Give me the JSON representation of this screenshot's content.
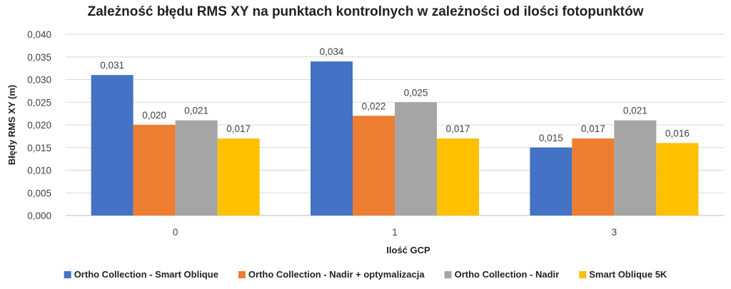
{
  "chart_data": {
    "type": "bar",
    "title": "Zależność błędu RMS XY na punktach kontrolnych w zależności od ilości fotopunktów",
    "xlabel": "Ilość GCP",
    "ylabel": "Błędy RMS XY (m)",
    "categories": [
      "0",
      "1",
      "3"
    ],
    "ylim": [
      0,
      0.04
    ],
    "ytick_step": 0.005,
    "ytick_labels": [
      "0,000",
      "0,005",
      "0,010",
      "0,015",
      "0,020",
      "0,025",
      "0,030",
      "0,035",
      "0,040"
    ],
    "grid": true,
    "legend_position": "bottom",
    "series": [
      {
        "name": "Ortho Collection - Smart Oblique",
        "color": "#4472c4",
        "values": [
          0.031,
          0.034,
          0.015
        ],
        "labels": [
          "0,031",
          "0,034",
          "0,015"
        ]
      },
      {
        "name": "Ortho Collection - Nadir + optymalizacja",
        "color": "#ed7d31",
        "values": [
          0.02,
          0.022,
          0.017
        ],
        "labels": [
          "0,020",
          "0,022",
          "0,017"
        ]
      },
      {
        "name": "Ortho Collection - Nadir",
        "color": "#a5a5a5",
        "values": [
          0.021,
          0.025,
          0.021
        ],
        "labels": [
          "0,021",
          "0,025",
          "0,021"
        ]
      },
      {
        "name": "Smart Oblique 5K",
        "color": "#ffc000",
        "values": [
          0.017,
          0.017,
          0.016
        ],
        "labels": [
          "0,017",
          "0,017",
          "0,016"
        ]
      }
    ]
  }
}
